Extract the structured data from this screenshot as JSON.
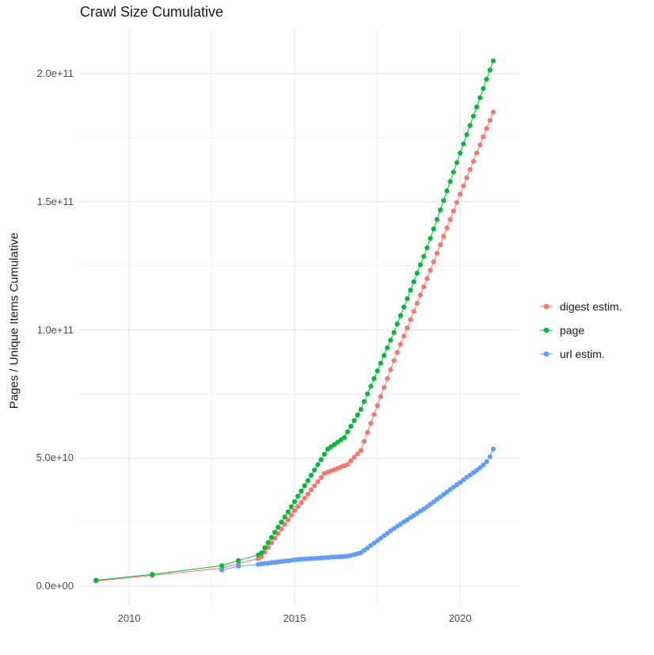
{
  "page": {
    "background": "#ffffff"
  },
  "chart_data": {
    "type": "scatter",
    "title": "Crawl Size Cumulative",
    "xlabel": "",
    "ylabel": "Pages / Unique Items Cumulative",
    "y_unit": 1000000000.0,
    "y_unit_note": "series point y-values are in units of 1e9 (billions of pages / unique items)",
    "grid": {
      "major_color": "#e4e4e4",
      "minor_color": "#f1f1f1",
      "background": "#ffffff"
    },
    "axes": {
      "x_range": [
        2008.49,
        2021.79
      ],
      "y_range": [
        -7.7,
        217
      ],
      "x_ticks": [
        {
          "value": 2010,
          "label": "2010"
        },
        {
          "value": 2015,
          "label": "2015"
        },
        {
          "value": 2020,
          "label": "2020"
        }
      ],
      "x_minor": [
        2012.5,
        2017.5
      ],
      "y_ticks": [
        {
          "value": 0,
          "label": "0.0e+00"
        },
        {
          "value": 50,
          "label": "5.0e+10"
        },
        {
          "value": 100,
          "label": "1.0e+11"
        },
        {
          "value": 150,
          "label": "1.5e+11"
        },
        {
          "value": 200,
          "label": "2.0e+11"
        }
      ],
      "y_minor": [
        25,
        75,
        125,
        175
      ]
    },
    "legend": {
      "position": "right"
    },
    "series": [
      {
        "name": "digest estim.",
        "color": "#F8766D",
        "points": [
          [
            2009.0,
            2.0
          ],
          [
            2010.7,
            4.2
          ],
          [
            2012.8,
            7.0
          ],
          [
            2013.3,
            8.8
          ],
          [
            2013.9,
            10.8
          ],
          [
            2014.0,
            11.5
          ],
          [
            2014.1,
            13.3
          ],
          [
            2014.2,
            15.1
          ],
          [
            2014.3,
            16.9
          ],
          [
            2014.4,
            18.7
          ],
          [
            2014.5,
            20.5
          ],
          [
            2014.6,
            22.3
          ],
          [
            2014.7,
            24.1
          ],
          [
            2014.8,
            25.9
          ],
          [
            2014.9,
            27.7
          ],
          [
            2015.0,
            29.5
          ],
          [
            2015.1,
            31.1
          ],
          [
            2015.2,
            32.7
          ],
          [
            2015.3,
            34.3
          ],
          [
            2015.4,
            35.9
          ],
          [
            2015.5,
            37.6
          ],
          [
            2015.6,
            39.2
          ],
          [
            2015.7,
            40.8
          ],
          [
            2015.8,
            42.4
          ],
          [
            2015.9,
            44.0
          ],
          [
            2016.0,
            44.5
          ],
          [
            2016.1,
            45.0
          ],
          [
            2016.2,
            45.5
          ],
          [
            2016.3,
            46.0
          ],
          [
            2016.4,
            46.5
          ],
          [
            2016.5,
            47.0
          ],
          [
            2016.6,
            47.5
          ],
          [
            2016.7,
            48.9
          ],
          [
            2016.8,
            50.3
          ],
          [
            2016.9,
            51.6
          ],
          [
            2017.0,
            53.0
          ],
          [
            2017.1,
            56.5
          ],
          [
            2017.2,
            60.0
          ],
          [
            2017.3,
            63.5
          ],
          [
            2017.4,
            67.0
          ],
          [
            2017.5,
            70.5
          ],
          [
            2017.6,
            74.0
          ],
          [
            2017.7,
            77.5
          ],
          [
            2017.8,
            81.0
          ],
          [
            2017.9,
            84.5
          ],
          [
            2018.0,
            88.0
          ],
          [
            2018.1,
            91.2
          ],
          [
            2018.2,
            94.4
          ],
          [
            2018.3,
            97.6
          ],
          [
            2018.4,
            100.8
          ],
          [
            2018.5,
            104.0
          ],
          [
            2018.6,
            107.2
          ],
          [
            2018.7,
            110.4
          ],
          [
            2018.8,
            113.6
          ],
          [
            2018.9,
            116.8
          ],
          [
            2019.0,
            120.0
          ],
          [
            2019.1,
            123.3
          ],
          [
            2019.2,
            126.6
          ],
          [
            2019.3,
            129.9
          ],
          [
            2019.4,
            133.2
          ],
          [
            2019.5,
            136.5
          ],
          [
            2019.6,
            139.8
          ],
          [
            2019.7,
            143.1
          ],
          [
            2019.8,
            146.4
          ],
          [
            2019.9,
            149.7
          ],
          [
            2020.0,
            153.0
          ],
          [
            2020.1,
            156.2
          ],
          [
            2020.2,
            159.4
          ],
          [
            2020.3,
            162.6
          ],
          [
            2020.4,
            165.8
          ],
          [
            2020.5,
            169.0
          ],
          [
            2020.6,
            172.2
          ],
          [
            2020.7,
            175.4
          ],
          [
            2020.8,
            178.6
          ],
          [
            2020.9,
            181.8
          ],
          [
            2021.0,
            185.0
          ]
        ]
      },
      {
        "name": "page",
        "color": "#00BA38",
        "points": [
          [
            2009.0,
            2.3
          ],
          [
            2010.7,
            4.6
          ],
          [
            2012.8,
            8.0
          ],
          [
            2013.3,
            10.0
          ],
          [
            2013.9,
            12.2
          ],
          [
            2014.0,
            13.0
          ],
          [
            2014.1,
            15.0
          ],
          [
            2014.2,
            17.0
          ],
          [
            2014.3,
            19.0
          ],
          [
            2014.4,
            21.0
          ],
          [
            2014.5,
            23.0
          ],
          [
            2014.6,
            25.0
          ],
          [
            2014.7,
            27.0
          ],
          [
            2014.8,
            29.0
          ],
          [
            2014.9,
            31.0
          ],
          [
            2015.0,
            33.0
          ],
          [
            2015.1,
            35.1
          ],
          [
            2015.2,
            37.1
          ],
          [
            2015.3,
            39.2
          ],
          [
            2015.4,
            41.2
          ],
          [
            2015.5,
            43.3
          ],
          [
            2015.6,
            45.3
          ],
          [
            2015.7,
            47.4
          ],
          [
            2015.8,
            49.4
          ],
          [
            2015.9,
            51.5
          ],
          [
            2016.0,
            53.5
          ],
          [
            2016.1,
            54.4
          ],
          [
            2016.2,
            55.3
          ],
          [
            2016.3,
            56.2
          ],
          [
            2016.4,
            57.1
          ],
          [
            2016.5,
            58.0
          ],
          [
            2016.6,
            60.2
          ],
          [
            2016.7,
            62.4
          ],
          [
            2016.8,
            64.6
          ],
          [
            2016.9,
            66.8
          ],
          [
            2017.0,
            69.0
          ],
          [
            2017.1,
            72.0
          ],
          [
            2017.2,
            75.0
          ],
          [
            2017.3,
            78.0
          ],
          [
            2017.4,
            81.0
          ],
          [
            2017.5,
            84.0
          ],
          [
            2017.6,
            87.0
          ],
          [
            2017.7,
            90.0
          ],
          [
            2017.8,
            93.0
          ],
          [
            2017.9,
            96.0
          ],
          [
            2018.0,
            99.0
          ],
          [
            2018.1,
            102.3
          ],
          [
            2018.2,
            105.6
          ],
          [
            2018.3,
            108.9
          ],
          [
            2018.4,
            112.2
          ],
          [
            2018.5,
            115.5
          ],
          [
            2018.6,
            118.8
          ],
          [
            2018.7,
            122.1
          ],
          [
            2018.8,
            125.4
          ],
          [
            2018.9,
            128.7
          ],
          [
            2019.0,
            132.0
          ],
          [
            2019.1,
            135.7
          ],
          [
            2019.2,
            139.4
          ],
          [
            2019.3,
            143.1
          ],
          [
            2019.4,
            146.8
          ],
          [
            2019.5,
            150.5
          ],
          [
            2019.6,
            154.2
          ],
          [
            2019.7,
            157.9
          ],
          [
            2019.8,
            161.6
          ],
          [
            2019.9,
            165.3
          ],
          [
            2020.0,
            169.0
          ],
          [
            2020.1,
            172.6
          ],
          [
            2020.2,
            176.2
          ],
          [
            2020.3,
            179.8
          ],
          [
            2020.4,
            183.4
          ],
          [
            2020.5,
            187.0
          ],
          [
            2020.6,
            190.6
          ],
          [
            2020.7,
            194.2
          ],
          [
            2020.8,
            197.8
          ],
          [
            2020.9,
            201.4
          ],
          [
            2021.0,
            205.0
          ]
        ]
      },
      {
        "name": "url estim.",
        "color": "#619CFF",
        "points": [
          [
            2012.8,
            6.3
          ],
          [
            2013.3,
            7.8
          ],
          [
            2013.9,
            8.5
          ],
          [
            2014.0,
            8.7
          ],
          [
            2014.1,
            8.9
          ],
          [
            2014.2,
            9.0
          ],
          [
            2014.3,
            9.2
          ],
          [
            2014.4,
            9.3
          ],
          [
            2014.5,
            9.5
          ],
          [
            2014.6,
            9.6
          ],
          [
            2014.7,
            9.8
          ],
          [
            2014.8,
            9.9
          ],
          [
            2014.9,
            10.1
          ],
          [
            2015.0,
            10.3
          ],
          [
            2015.1,
            10.4
          ],
          [
            2015.2,
            10.5
          ],
          [
            2015.3,
            10.6
          ],
          [
            2015.4,
            10.7
          ],
          [
            2015.5,
            10.8
          ],
          [
            2015.6,
            10.8
          ],
          [
            2015.7,
            10.9
          ],
          [
            2015.8,
            11.0
          ],
          [
            2015.9,
            11.1
          ],
          [
            2016.0,
            11.2
          ],
          [
            2016.1,
            11.3
          ],
          [
            2016.2,
            11.4
          ],
          [
            2016.3,
            11.4
          ],
          [
            2016.4,
            11.5
          ],
          [
            2016.5,
            11.6
          ],
          [
            2016.6,
            11.7
          ],
          [
            2016.7,
            12.0
          ],
          [
            2016.8,
            12.3
          ],
          [
            2016.9,
            12.7
          ],
          [
            2017.0,
            13.0
          ],
          [
            2017.1,
            14.0
          ],
          [
            2017.2,
            14.9
          ],
          [
            2017.3,
            15.9
          ],
          [
            2017.4,
            16.8
          ],
          [
            2017.5,
            17.8
          ],
          [
            2017.6,
            18.7
          ],
          [
            2017.7,
            19.7
          ],
          [
            2017.8,
            20.6
          ],
          [
            2017.9,
            21.6
          ],
          [
            2018.0,
            22.5
          ],
          [
            2018.1,
            23.4
          ],
          [
            2018.2,
            24.2
          ],
          [
            2018.3,
            25.1
          ],
          [
            2018.4,
            25.9
          ],
          [
            2018.5,
            26.8
          ],
          [
            2018.6,
            27.6
          ],
          [
            2018.7,
            28.4
          ],
          [
            2018.8,
            29.3
          ],
          [
            2018.9,
            30.1
          ],
          [
            2019.0,
            31.0
          ],
          [
            2019.1,
            32.0
          ],
          [
            2019.2,
            32.9
          ],
          [
            2019.3,
            33.9
          ],
          [
            2019.4,
            34.8
          ],
          [
            2019.5,
            35.8
          ],
          [
            2019.6,
            36.7
          ],
          [
            2019.7,
            37.7
          ],
          [
            2019.8,
            38.6
          ],
          [
            2019.9,
            39.6
          ],
          [
            2020.0,
            40.5
          ],
          [
            2020.1,
            41.5
          ],
          [
            2020.2,
            42.5
          ],
          [
            2020.3,
            43.4
          ],
          [
            2020.4,
            44.3
          ],
          [
            2020.5,
            45.2
          ],
          [
            2020.6,
            46.2
          ],
          [
            2020.7,
            47.3
          ],
          [
            2020.8,
            48.6
          ],
          [
            2020.9,
            50.5
          ],
          [
            2021.0,
            53.5
          ]
        ]
      }
    ]
  }
}
